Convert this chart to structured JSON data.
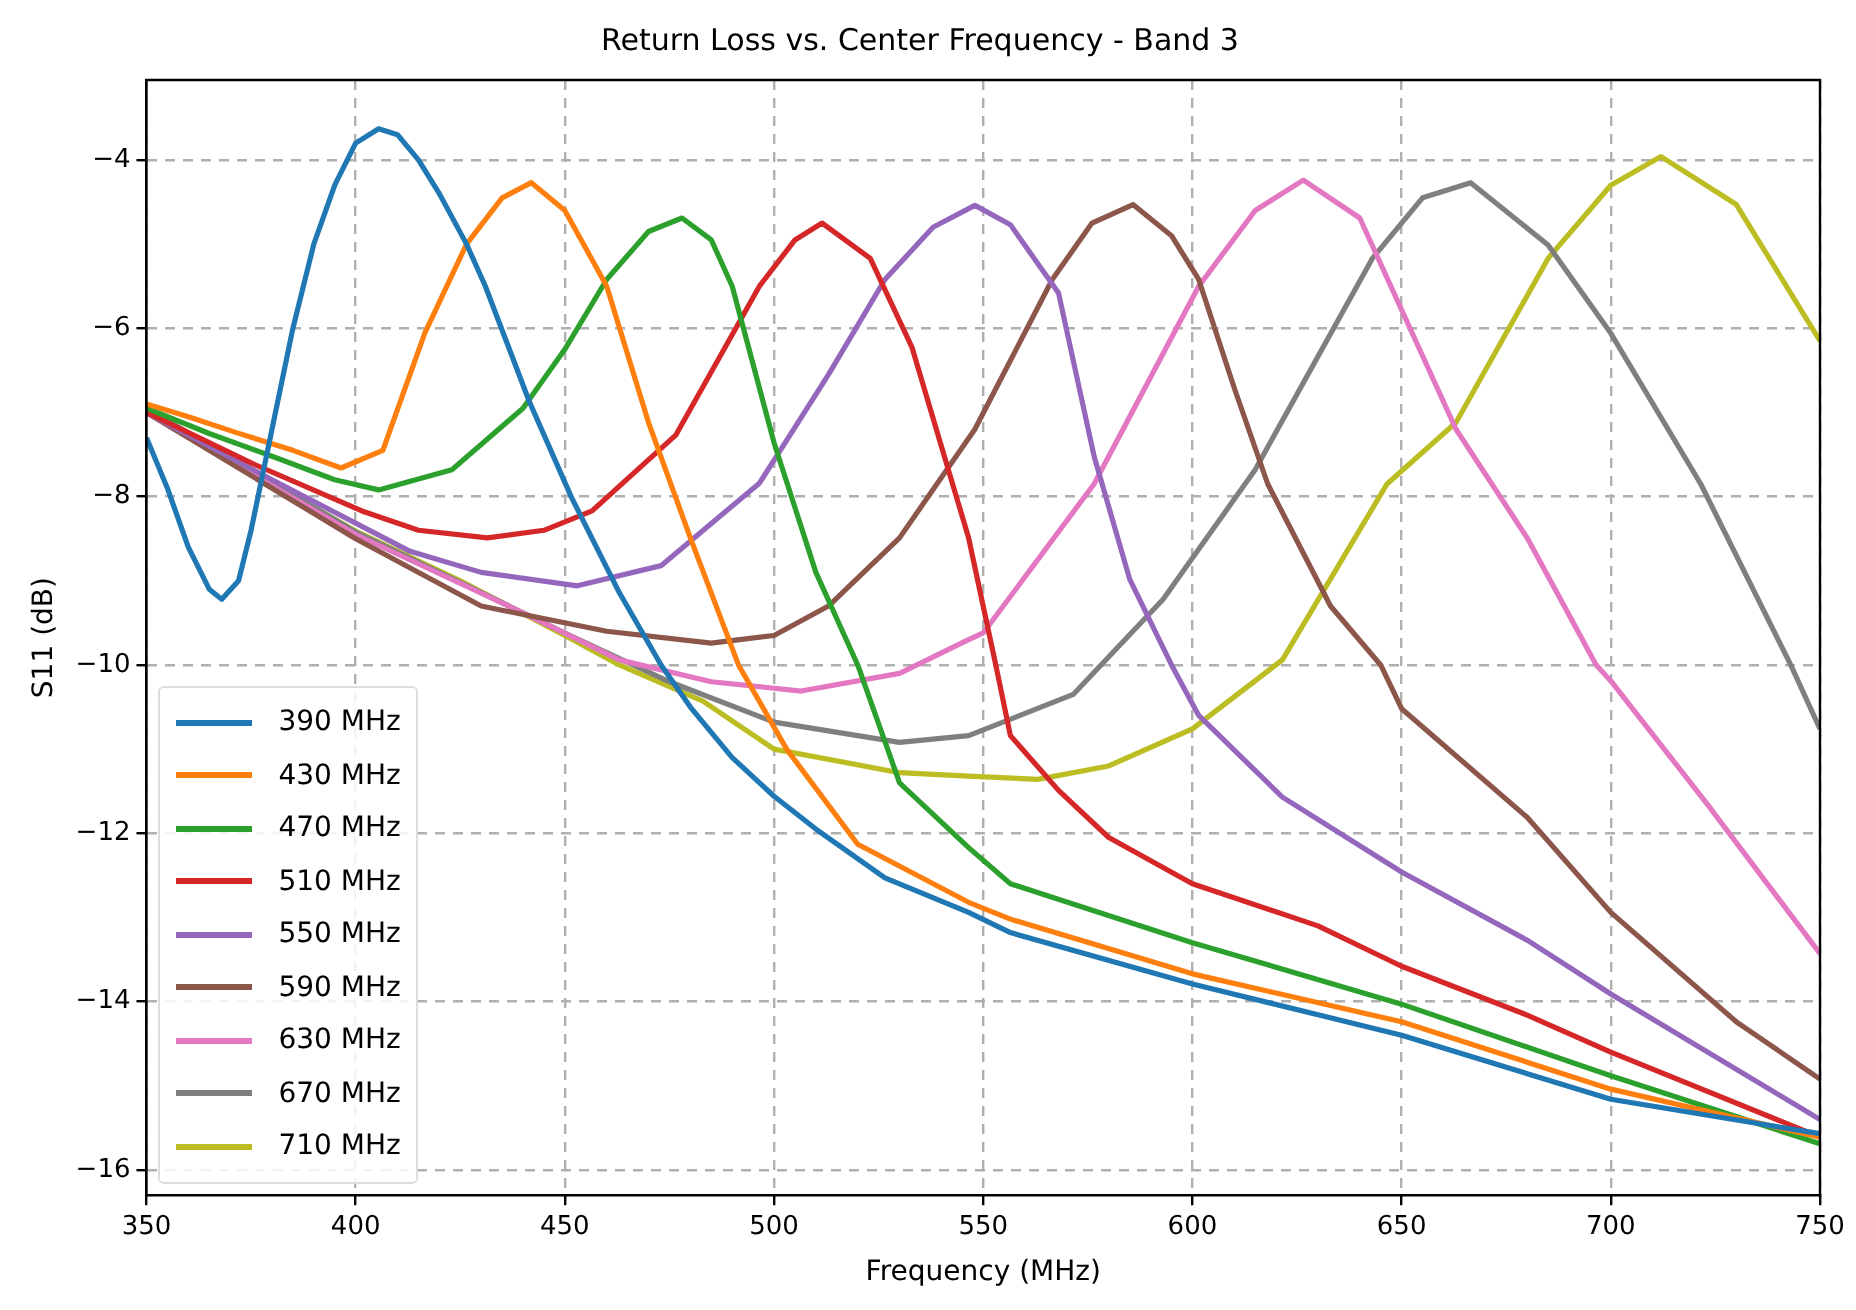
{
  "chart_data": {
    "type": "line",
    "title": "Return Loss vs. Center Frequency - Band 3",
    "xlabel": "Frequency (MHz)",
    "ylabel": "S11 (dB)",
    "xlim": [
      350,
      750
    ],
    "ylim": [
      -16.3,
      -3.05
    ],
    "xticks": [
      350,
      400,
      450,
      500,
      550,
      600,
      650,
      700,
      750
    ],
    "yticks": [
      -16,
      -14,
      -12,
      -10,
      -8,
      -6,
      -4
    ],
    "grid": true,
    "legend": "bottom left",
    "marker": "none",
    "line_style": "solid",
    "series": [
      {
        "name": "390 MHz",
        "color": "#1f77b4",
        "x": [
          350,
          355,
          360,
          365,
          368,
          372,
          375,
          380,
          385,
          390,
          395,
          400,
          405.5,
          410,
          415,
          420,
          426.5,
          431,
          441.5,
          451.5,
          463,
          473,
          480,
          490,
          500,
          510,
          526.5,
          546.5,
          556.5,
          600,
          650,
          700,
          750
        ],
        "values": [
          -7.3,
          -7.9,
          -8.6,
          -9.1,
          -9.22,
          -9.0,
          -8.4,
          -7.2,
          -6.0,
          -5.0,
          -4.3,
          -3.8,
          -3.63,
          -3.7,
          -4.0,
          -4.4,
          -5.0,
          -5.5,
          -6.87,
          -8.0,
          -9.14,
          -10.0,
          -10.5,
          -11.1,
          -11.56,
          -11.95,
          -12.53,
          -12.94,
          -13.18,
          -13.79,
          -14.4,
          -15.16,
          -15.57
        ]
      },
      {
        "name": "430 MHz",
        "color": "#ff7f0e",
        "x": [
          350,
          360,
          371.5,
          385,
          396.5,
          406.5,
          416.5,
          426.5,
          435,
          442,
          450,
          460,
          470,
          480,
          491.5,
          503,
          520,
          546.5,
          556.5,
          600,
          650,
          700,
          750
        ],
        "values": [
          -6.9,
          -7.05,
          -7.24,
          -7.45,
          -7.66,
          -7.45,
          -6.06,
          -5.0,
          -4.45,
          -4.27,
          -4.6,
          -5.5,
          -7.12,
          -8.49,
          -10.0,
          -11.0,
          -12.13,
          -12.82,
          -13.02,
          -13.67,
          -14.24,
          -15.04,
          -15.61
        ]
      },
      {
        "name": "470 MHz",
        "color": "#2ca02c",
        "x": [
          350,
          365,
          380,
          395,
          405.5,
          423,
          440,
          450,
          460,
          470,
          478,
          485,
          490,
          500,
          510,
          520,
          530,
          546.5,
          556.5,
          600,
          650,
          700,
          750
        ],
        "values": [
          -6.95,
          -7.25,
          -7.52,
          -7.8,
          -7.92,
          -7.68,
          -6.95,
          -6.25,
          -5.42,
          -4.85,
          -4.69,
          -4.95,
          -5.5,
          -7.36,
          -8.9,
          -10.0,
          -11.4,
          -12.17,
          -12.6,
          -13.3,
          -14.03,
          -14.88,
          -15.69
        ]
      },
      {
        "name": "510 MHz",
        "color": "#d62728",
        "x": [
          350,
          375,
          401.5,
          415,
          431.5,
          445,
          456.5,
          476.5,
          496.5,
          505,
          511.5,
          523,
          533,
          546.5,
          553,
          556.5,
          568,
          580,
          600,
          630,
          650,
          680,
          700,
          750
        ],
        "values": [
          -7.0,
          -7.6,
          -8.17,
          -8.4,
          -8.49,
          -8.4,
          -8.17,
          -7.27,
          -5.5,
          -4.95,
          -4.75,
          -5.17,
          -6.23,
          -8.49,
          -10.0,
          -10.84,
          -11.49,
          -12.05,
          -12.6,
          -13.1,
          -13.58,
          -14.16,
          -14.6,
          -15.61
        ]
      },
      {
        "name": "550 MHz",
        "color": "#9467bd",
        "x": [
          350,
          380,
          413,
          430,
          453,
          473,
          496.5,
          513,
          526.5,
          538,
          548,
          556.5,
          568,
          576.5,
          585,
          595,
          601.5,
          621.5,
          650,
          680,
          700,
          750
        ],
        "values": [
          -7.0,
          -7.8,
          -8.65,
          -8.9,
          -9.06,
          -8.82,
          -7.84,
          -6.55,
          -5.42,
          -4.8,
          -4.54,
          -4.77,
          -5.58,
          -7.52,
          -8.98,
          -10.0,
          -10.6,
          -11.57,
          -12.46,
          -13.27,
          -13.91,
          -15.4
        ]
      },
      {
        "name": "590 MHz",
        "color": "#8c564b",
        "x": [
          350,
          400,
          430,
          460,
          485,
          500,
          513,
          530,
          548,
          566.5,
          576,
          585.8,
          595,
          601.5,
          610,
          618,
          633,
          645,
          650,
          680,
          700,
          730,
          750
        ],
        "values": [
          -7.0,
          -8.5,
          -9.3,
          -9.6,
          -9.74,
          -9.65,
          -9.3,
          -8.49,
          -7.2,
          -5.42,
          -4.75,
          -4.53,
          -4.9,
          -5.42,
          -6.71,
          -7.85,
          -9.3,
          -10.0,
          -10.52,
          -11.81,
          -12.94,
          -14.24,
          -14.92
        ]
      },
      {
        "name": "630 MHz",
        "color": "#e377c2",
        "x": [
          350,
          400,
          440,
          463,
          485,
          506.5,
          530,
          546.5,
          550,
          576.5,
          601.5,
          615,
          626.5,
          640,
          663,
          680,
          696.5,
          700,
          723,
          750
        ],
        "values": [
          -7.0,
          -8.45,
          -9.38,
          -9.94,
          -10.2,
          -10.31,
          -10.1,
          -9.7,
          -9.62,
          -7.85,
          -5.5,
          -4.6,
          -4.24,
          -4.69,
          -7.2,
          -8.49,
          -10.0,
          -10.19,
          -11.65,
          -13.43
        ]
      },
      {
        "name": "670 MHz",
        "color": "#7f7f7f",
        "x": [
          350,
          400,
          450,
          475,
          500,
          530,
          546.5,
          571.5,
          593,
          615,
          643,
          655,
          666.5,
          685,
          700,
          721.5,
          743,
          750
        ],
        "values": [
          -6.95,
          -8.42,
          -9.62,
          -10.2,
          -10.68,
          -10.92,
          -10.84,
          -10.35,
          -9.22,
          -7.68,
          -5.17,
          -4.45,
          -4.27,
          -5.01,
          -6.06,
          -7.85,
          -10.0,
          -10.76
        ]
      },
      {
        "name": "710 MHz",
        "color": "#bcbd22",
        "x": [
          350,
          375,
          400,
          425,
          450,
          463,
          483,
          500,
          530,
          546.5,
          563,
          580,
          600,
          621.5,
          646.5,
          663,
          685,
          700,
          712,
          730,
          750
        ],
        "values": [
          -6.95,
          -7.7,
          -8.41,
          -9.0,
          -9.65,
          -10.0,
          -10.43,
          -11.0,
          -11.28,
          -11.32,
          -11.36,
          -11.2,
          -10.76,
          -9.94,
          -7.85,
          -7.12,
          -5.17,
          -4.3,
          -3.96,
          -4.53,
          -6.15
        ]
      }
    ]
  }
}
